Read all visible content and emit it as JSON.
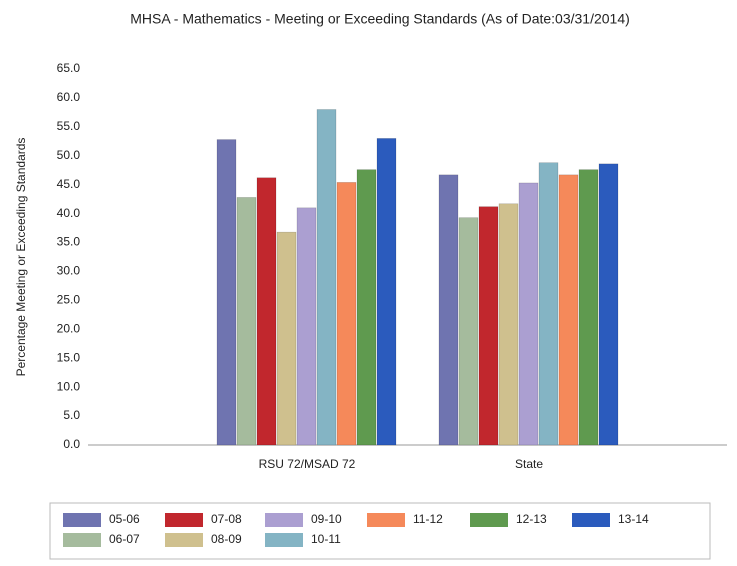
{
  "chart_data": {
    "type": "bar",
    "title": "MHSA - Mathematics - Meeting or Exceeding Standards (As of Date:03/31/2014)",
    "y_label": "Percentage Meeting or Exceeding Standards",
    "categories": [
      "RSU 72/MSAD 72",
      "State"
    ],
    "series": [
      {
        "name": "05-06",
        "color": "#6f74b0",
        "values": [
          52.8,
          46.7
        ]
      },
      {
        "name": "06-07",
        "color": "#a5bb9d",
        "values": [
          42.8,
          39.3
        ]
      },
      {
        "name": "07-08",
        "color": "#c1272d",
        "values": [
          46.2,
          41.2
        ]
      },
      {
        "name": "08-09",
        "color": "#cfc08e",
        "values": [
          36.8,
          41.7
        ]
      },
      {
        "name": "09-10",
        "color": "#ab9fd1",
        "values": [
          41.0,
          45.3
        ]
      },
      {
        "name": "10-11",
        "color": "#84b4c4",
        "values": [
          58.0,
          48.8
        ]
      },
      {
        "name": "11-12",
        "color": "#f5895a",
        "values": [
          45.4,
          46.7
        ]
      },
      {
        "name": "12-13",
        "color": "#5f9a4f",
        "values": [
          47.6,
          47.6
        ]
      },
      {
        "name": "13-14",
        "color": "#2b5bbd",
        "values": [
          53.0,
          48.6
        ]
      }
    ],
    "ylim": [
      0,
      65
    ],
    "yticks": [
      {
        "value": 0,
        "label": "0.0"
      },
      {
        "value": 5,
        "label": "5.0"
      },
      {
        "value": 10,
        "label": "10.0"
      },
      {
        "value": 15,
        "label": "15.0"
      },
      {
        "value": 20,
        "label": "20.0"
      },
      {
        "value": 25,
        "label": "25.0"
      },
      {
        "value": 30,
        "label": "30.0"
      },
      {
        "value": 35,
        "label": "35.0"
      },
      {
        "value": 40,
        "label": "40.0"
      },
      {
        "value": 45,
        "label": "45.0"
      },
      {
        "value": 50,
        "label": "50.0"
      },
      {
        "value": 55,
        "label": "55.0"
      },
      {
        "value": 60,
        "label": "60.0"
      },
      {
        "value": 65,
        "label": "65.0"
      }
    ],
    "grid": false
  }
}
